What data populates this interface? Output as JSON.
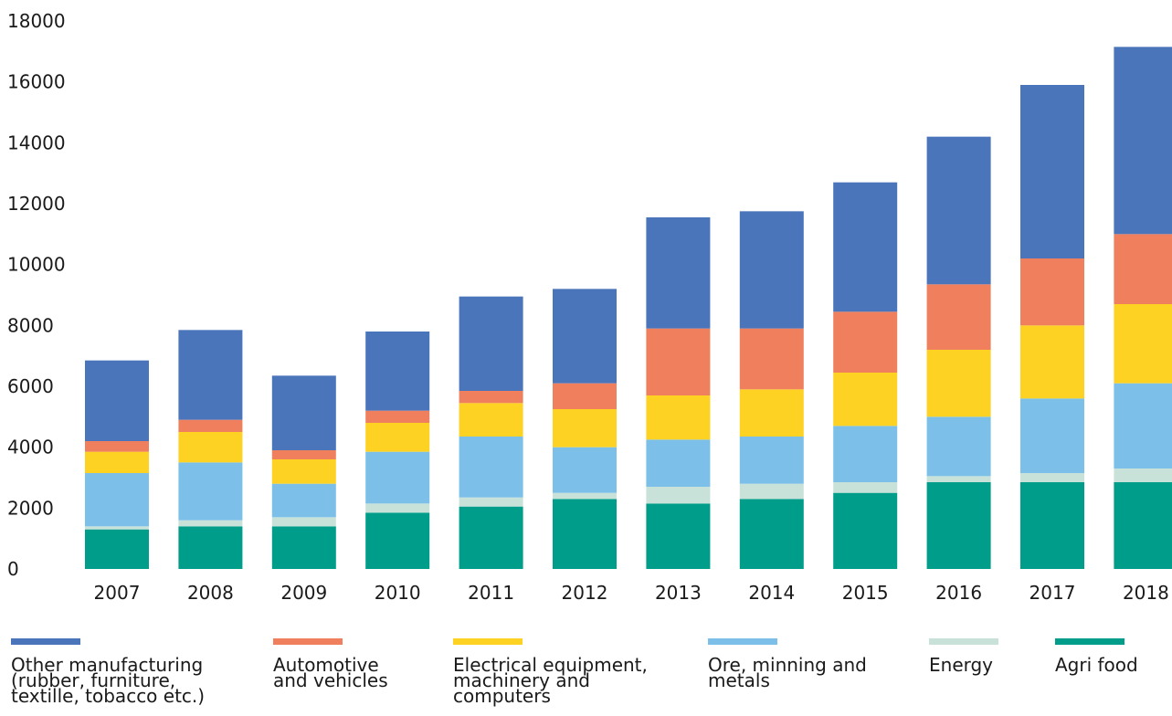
{
  "chart_data": {
    "type": "bar",
    "stacked": true,
    "categories": [
      "2007",
      "2008",
      "2009",
      "2010",
      "2011",
      "2012",
      "2013",
      "2014",
      "2015",
      "2016",
      "2017",
      "2018"
    ],
    "ylim": [
      0,
      18000
    ],
    "yticks": [
      "0",
      "2000",
      "4000",
      "6000",
      "8000",
      "10000",
      "12000",
      "14000",
      "16000",
      "18000"
    ],
    "grid": false,
    "legend_position": "bottom",
    "series": [
      {
        "name": "Agri food",
        "color": "#009e8a",
        "values": [
          1300,
          1400,
          1400,
          1850,
          2050,
          2300,
          2150,
          2300,
          2500,
          2850,
          2850,
          2850
        ]
      },
      {
        "name": "Energy",
        "color": "#c8e2da",
        "values": [
          100,
          200,
          300,
          300,
          300,
          200,
          550,
          500,
          350,
          200,
          300,
          450
        ]
      },
      {
        "name": "Ore, minning and metals",
        "color": "#7cc0ea",
        "values": [
          1750,
          1900,
          1100,
          1700,
          2000,
          1500,
          1550,
          1550,
          1850,
          1950,
          2450,
          2800
        ]
      },
      {
        "name": "Electrical equipment, machinery and computers",
        "color": "#fdd223",
        "values": [
          700,
          1000,
          800,
          950,
          1100,
          1250,
          1450,
          1550,
          1750,
          2200,
          2400,
          2600
        ]
      },
      {
        "name": "Automotive and vehicles",
        "color": "#f0805d",
        "values": [
          350,
          400,
          300,
          400,
          400,
          850,
          2200,
          2000,
          2000,
          2150,
          2200,
          2300
        ]
      },
      {
        "name": "Other manufacturing (rubber, furniture, textille, tobacco etc.)",
        "color": "#4b75bb",
        "values": [
          2650,
          2950,
          2450,
          2600,
          3100,
          3100,
          3650,
          3850,
          4250,
          4850,
          5700,
          6150
        ]
      }
    ]
  },
  "legend": [
    {
      "label": "Other manufacturing\n(rubber, furniture,\ntextille, tobacco etc.)",
      "color": "#4b75bb"
    },
    {
      "label": "Automotive\nand vehicles",
      "color": "#f0805d"
    },
    {
      "label": "Electrical equipment,\nmachinery and\ncomputers",
      "color": "#fdd223"
    },
    {
      "label": "Ore, minning and\nmetals",
      "color": "#7cc0ea"
    },
    {
      "label": "Energy",
      "color": "#c8e2da"
    },
    {
      "label": "Agri food",
      "color": "#009e8a"
    }
  ]
}
